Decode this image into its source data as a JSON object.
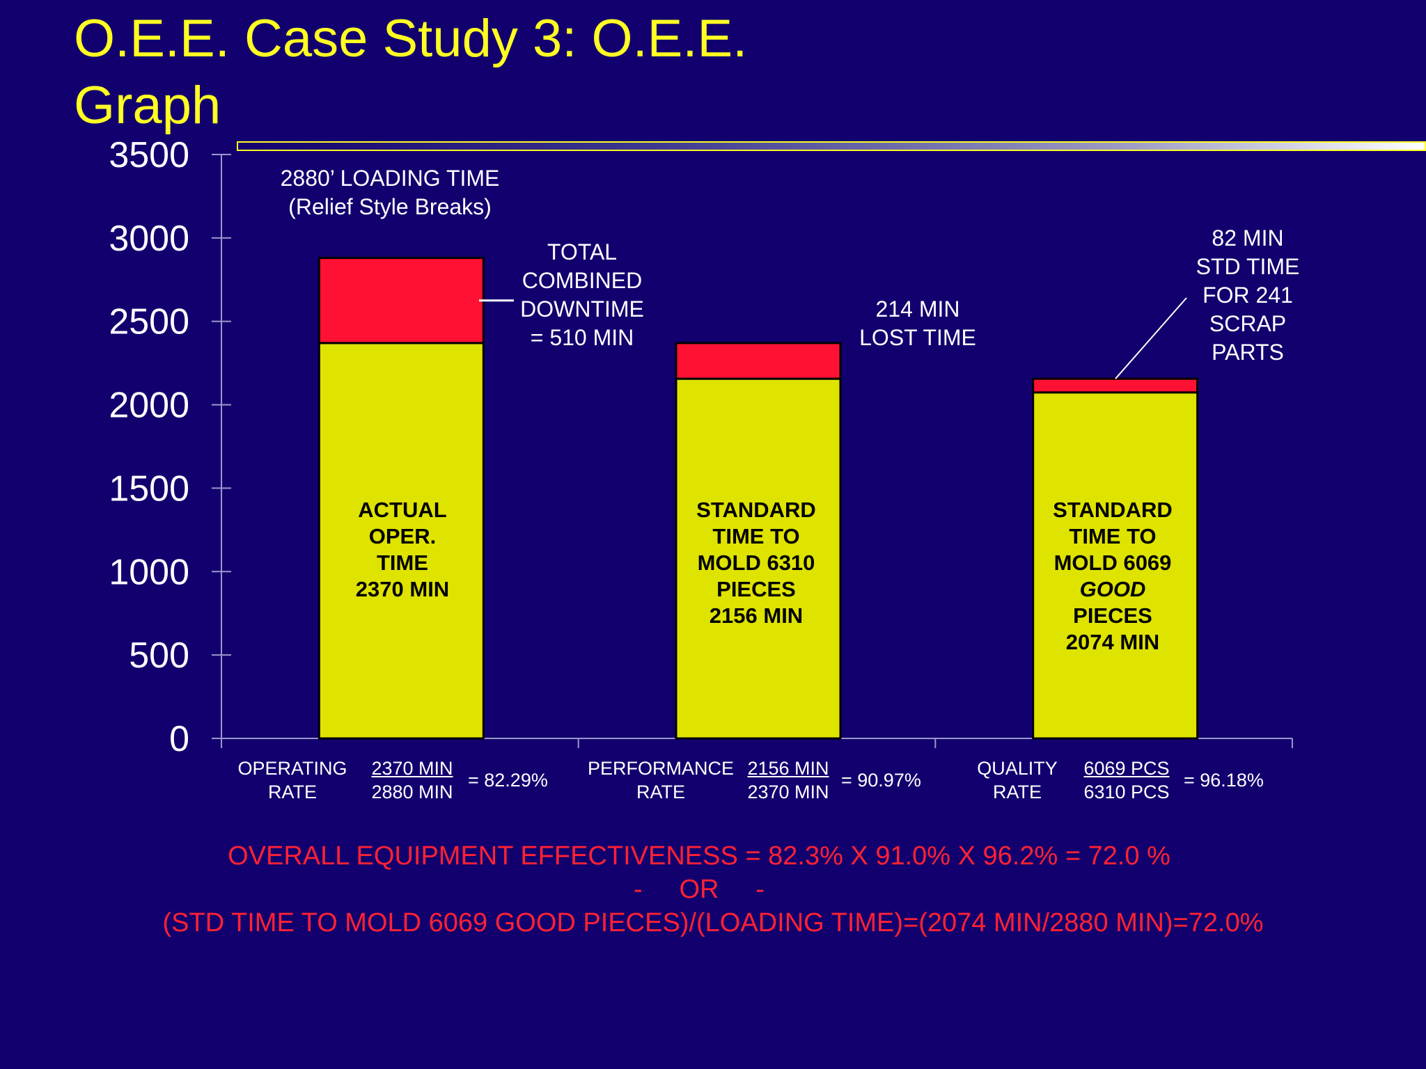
{
  "slide": {
    "title": "O.E.E. Case Study 3:  O.E.E. Graph"
  },
  "chart_data": {
    "type": "bar",
    "stacked": true,
    "categories": [
      "",
      "",
      ""
    ],
    "ylim": [
      0,
      3500
    ],
    "yticks": [
      0,
      500,
      1000,
      1500,
      2000,
      2500,
      3000,
      3500
    ],
    "series": [
      {
        "values": [
          2370,
          2156,
          2074
        ],
        "color": "#dfe300"
      },
      {
        "values": [
          510,
          214,
          82
        ],
        "color": "#ff1133"
      }
    ],
    "annotations": {
      "loading": [
        "2880’ LOADING TIME",
        "(Relief Style Breaks)"
      ],
      "downtime": [
        "TOTAL",
        "COMBINED",
        "DOWNTIME",
        "= 510 MIN"
      ],
      "lost": [
        "214 MIN",
        "LOST TIME"
      ],
      "scrap": [
        "82 MIN",
        "STD TIME",
        "FOR 241",
        "SCRAP",
        "PARTS"
      ]
    },
    "bar_labels": [
      [
        "ACTUAL",
        "OPER.",
        "TIME",
        "2370 MIN"
      ],
      [
        "STANDARD",
        "TIME TO",
        "MOLD 6310",
        "PIECES",
        "2156 MIN"
      ],
      [
        "STANDARD",
        "TIME TO",
        "MOLD 6069",
        "GOOD",
        "PIECES",
        "2074 MIN"
      ]
    ]
  },
  "rates": [
    {
      "name": [
        "OPERATING",
        "RATE"
      ],
      "num": "2370 MIN",
      "den": "2880 MIN",
      "result": "= 82.29%"
    },
    {
      "name": [
        "PERFORMANCE",
        "RATE"
      ],
      "num": "2156 MIN",
      "den": "2370 MIN",
      "result": "= 90.97%"
    },
    {
      "name": [
        "QUALITY",
        "RATE"
      ],
      "num": "6069 PCS",
      "den": "6310 PCS",
      "result": "= 96.18%"
    }
  ],
  "oee": {
    "line1": "OVERALL EQUIPMENT EFFECTIVENESS = 82.3% X 91.0% X 96.2% = 72.0 %",
    "line2": "-     OR     -",
    "line3": "(STD TIME TO MOLD 6069 GOOD PIECES)/(LOADING TIME)=(2074 MIN/2880 MIN)=72.0%"
  }
}
